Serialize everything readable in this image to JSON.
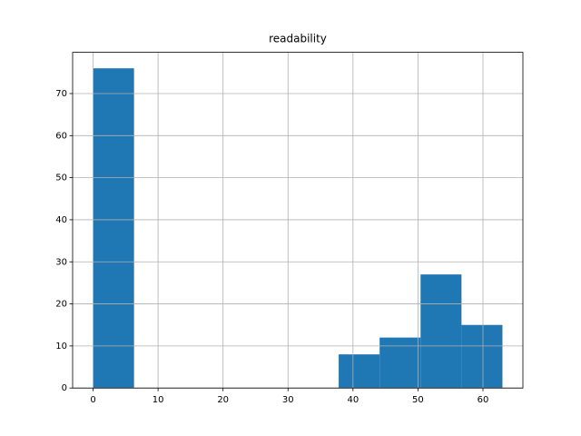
{
  "chart_data": {
    "type": "histogram",
    "title": "readability",
    "bins": [
      0,
      6.3,
      12.6,
      18.9,
      25.2,
      31.5,
      37.8,
      44.1,
      50.4,
      56.7,
      63
    ],
    "counts": [
      76,
      0,
      0,
      0,
      0,
      0,
      8,
      12,
      27,
      15
    ],
    "color": "#1f77b4",
    "xlim": [
      -3.15,
      66.15
    ],
    "xticks": [
      0,
      10,
      20,
      30,
      40,
      50,
      60
    ],
    "ylim": [
      0,
      79.8
    ],
    "yticks": [
      0,
      10,
      20,
      30,
      40,
      50,
      60,
      70
    ],
    "grid": true
  }
}
